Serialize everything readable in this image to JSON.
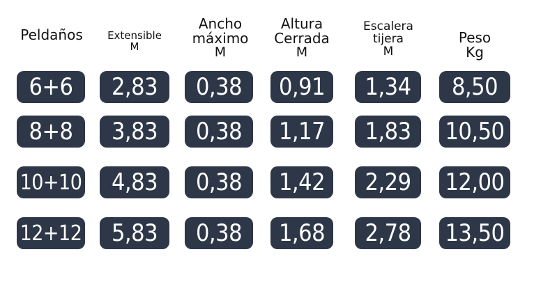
{
  "headers": [
    {
      "lines": [
        "Peldaños"
      ]
    },
    {
      "lines": [
        "Extensible",
        "M"
      ]
    },
    {
      "lines": [
        "Ancho",
        "máximo",
        "M"
      ]
    },
    {
      "lines": [
        "Altura",
        "Cerrada",
        "M"
      ]
    },
    {
      "lines": [
        "Escalera",
        "tijera",
        "M"
      ]
    },
    {
      "lines": [
        "Peso",
        "Kg"
      ]
    }
  ],
  "rows": [
    [
      "6+6",
      "2,83",
      "0,38",
      "0,91",
      "1,34",
      "8,50"
    ],
    [
      "8+8",
      "3,83",
      "0,38",
      "1,17",
      "1,83",
      "10,50"
    ],
    [
      "10+10",
      "4,83",
      "0,38",
      "1,42",
      "2,29",
      "12,00"
    ],
    [
      "12+12",
      "5,83",
      "0,38",
      "1,68",
      "2,78",
      "13,50"
    ]
  ],
  "colors": {
    "cell_background": "#2d3748",
    "cell_text": "#ffffff",
    "header_text": "#111111"
  }
}
